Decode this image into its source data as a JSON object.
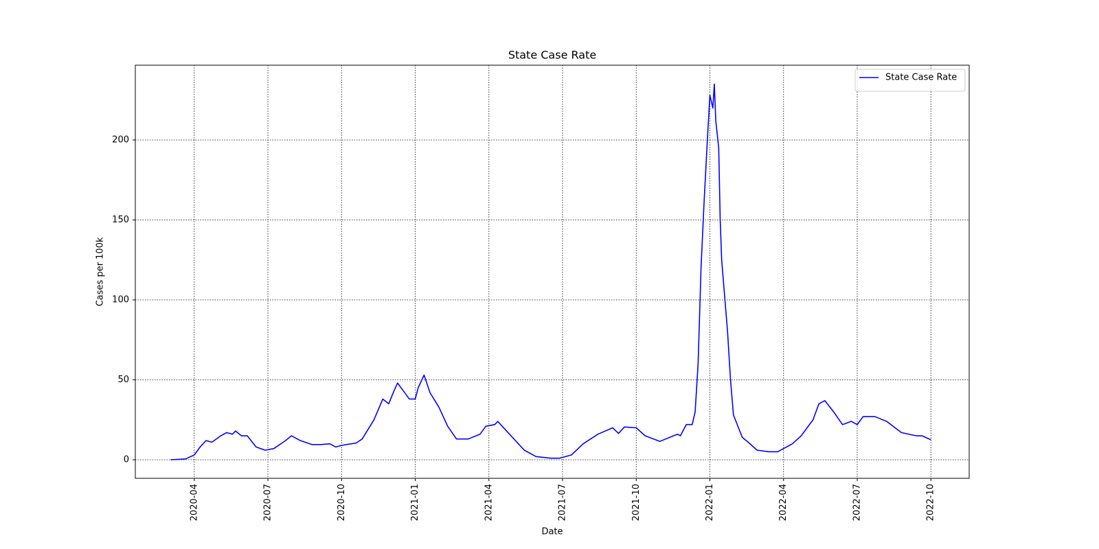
{
  "chart_data": {
    "type": "line",
    "title": "State Case Rate",
    "x_label": "Date",
    "y_label": "Cases per 100k",
    "legend": "upper right",
    "grid": true,
    "xlim": [
      2020.05,
      2022.88
    ],
    "ylim": [
      -11.6,
      246.8
    ],
    "xticks": [
      {
        "value": 2020.25,
        "label": "2020-04"
      },
      {
        "value": 2020.5,
        "label": "2020-07"
      },
      {
        "value": 2020.75,
        "label": "2020-10"
      },
      {
        "value": 2021.0,
        "label": "2021-01"
      },
      {
        "value": 2021.25,
        "label": "2021-04"
      },
      {
        "value": 2021.5,
        "label": "2021-07"
      },
      {
        "value": 2021.75,
        "label": "2021-10"
      },
      {
        "value": 2022.0,
        "label": "2022-01"
      },
      {
        "value": 2022.25,
        "label": "2022-04"
      },
      {
        "value": 2022.5,
        "label": "2022-07"
      },
      {
        "value": 2022.75,
        "label": "2022-10"
      }
    ],
    "yticks": [
      0,
      50,
      100,
      150,
      200
    ],
    "x": [
      2020.17,
      2020.22,
      2020.25,
      2020.27,
      2020.29,
      2020.31,
      2020.34,
      2020.36,
      2020.38,
      2020.39,
      2020.41,
      2020.43,
      2020.46,
      2020.49,
      2020.52,
      2020.56,
      2020.58,
      2020.61,
      2020.65,
      2020.68,
      2020.71,
      2020.73,
      2020.75,
      2020.8,
      2020.82,
      2020.86,
      2020.89,
      2020.91,
      2020.93,
      2020.94,
      2020.96,
      2020.98,
      2021.0,
      2021.01,
      2021.03,
      2021.05,
      2021.08,
      2021.11,
      2021.14,
      2021.18,
      2021.22,
      2021.24,
      2021.27,
      2021.28,
      2021.32,
      2021.37,
      2021.41,
      2021.46,
      2021.49,
      2021.53,
      2021.57,
      2021.62,
      2021.67,
      2021.69,
      2021.71,
      2021.75,
      2021.78,
      2021.83,
      2021.89,
      2021.9,
      2021.92,
      2021.94,
      2021.95,
      2021.96,
      2021.97,
      2021.98,
      2021.99,
      2022.0,
      2022.01,
      2022.015,
      2022.02,
      2022.03,
      2022.035,
      2022.04,
      2022.06,
      2022.07,
      2022.08,
      2022.11,
      2022.13,
      2022.16,
      2022.2,
      2022.23,
      2022.28,
      2022.31,
      2022.35,
      2022.37,
      2022.39,
      2022.42,
      2022.45,
      2022.48,
      2022.5,
      2022.52,
      2022.56,
      2022.6,
      2022.65,
      2022.7,
      2022.72,
      2022.75
    ],
    "series": [
      {
        "name": "State Case Rate",
        "color": "#0000ff",
        "values": [
          0,
          0.5,
          3,
          8,
          12,
          11,
          15,
          17,
          16,
          18,
          15,
          15,
          8,
          6,
          7,
          12,
          15,
          12,
          9.5,
          9.5,
          10,
          8,
          9,
          10.5,
          13,
          25,
          38,
          35,
          44,
          48,
          43,
          38,
          38,
          45,
          53,
          42,
          33,
          21,
          13,
          13,
          16,
          21,
          22,
          24,
          16,
          6,
          2,
          1,
          1,
          3,
          10,
          16,
          20,
          16.5,
          20.5,
          20,
          15,
          11.5,
          16,
          15,
          22,
          22,
          30,
          60,
          120,
          160,
          195,
          228,
          220,
          235,
          212,
          195,
          150,
          125,
          80,
          50,
          28,
          14,
          11,
          6,
          5,
          5,
          10,
          15,
          25,
          35,
          37,
          30,
          22,
          24,
          22,
          27,
          27,
          24,
          17,
          15,
          15,
          12.5
        ]
      }
    ]
  }
}
